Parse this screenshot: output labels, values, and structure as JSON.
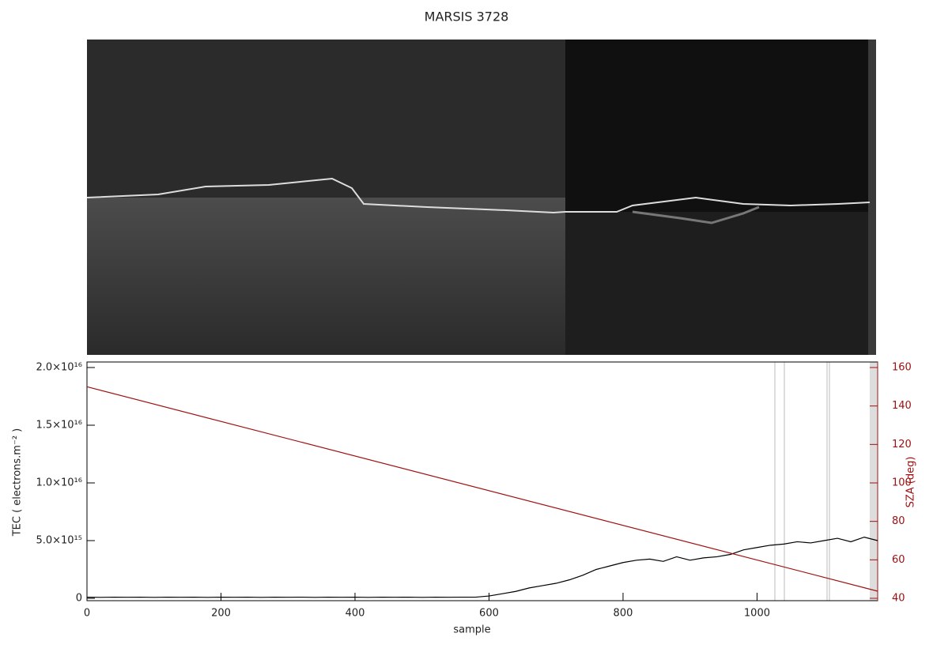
{
  "chart_data": {
    "type": "line",
    "title": "MARSIS 3728",
    "x_label": "sample",
    "y_label": "TEC ( electrons.m⁻² )",
    "y2_label": "SZA (deg)",
    "xlim": [
      0,
      1180
    ],
    "xticks": [
      0,
      200,
      400,
      600,
      800,
      1000
    ],
    "ylim": [
      0,
      2e+16
    ],
    "yticks": [
      {
        "value": 0,
        "label": "0"
      },
      {
        "value": 5000000000000000.0,
        "label": "5.0×10¹⁵"
      },
      {
        "value": 1e+16,
        "label": "1.0×10¹⁶"
      },
      {
        "value": 1.5e+16,
        "label": "1.5×10¹⁶"
      },
      {
        "value": 2e+16,
        "label": "2.0×10¹⁶"
      }
    ],
    "y2lim": [
      40,
      160
    ],
    "y2ticks": [
      40,
      60,
      80,
      100,
      120,
      140,
      160
    ],
    "x": [
      0,
      20,
      40,
      60,
      80,
      100,
      120,
      140,
      160,
      180,
      200,
      220,
      240,
      260,
      280,
      300,
      320,
      340,
      360,
      380,
      400,
      420,
      440,
      460,
      480,
      500,
      520,
      540,
      560,
      580,
      600,
      620,
      640,
      660,
      680,
      700,
      720,
      740,
      760,
      780,
      800,
      820,
      840,
      860,
      880,
      900,
      920,
      940,
      960,
      980,
      1000,
      1020,
      1040,
      1060,
      1080,
      1100,
      1120,
      1140,
      1160,
      1180
    ],
    "series": [
      {
        "name": "TEC",
        "color": "#000000",
        "values": [
          100000000000000.0,
          80000000000000.0,
          100000000000000.0,
          90000000000000.0,
          100000000000000.0,
          80000000000000.0,
          100000000000000.0,
          90000000000000.0,
          100000000000000.0,
          80000000000000.0,
          100000000000000.0,
          90000000000000.0,
          100000000000000.0,
          80000000000000.0,
          100000000000000.0,
          90000000000000.0,
          100000000000000.0,
          80000000000000.0,
          100000000000000.0,
          90000000000000.0,
          100000000000000.0,
          80000000000000.0,
          100000000000000.0,
          90000000000000.0,
          100000000000000.0,
          80000000000000.0,
          100000000000000.0,
          90000000000000.0,
          100000000000000.0,
          100000000000000.0,
          200000000000000.0,
          400000000000000.0,
          600000000000000.0,
          900000000000000.0,
          1100000000000000.0,
          1300000000000000.0,
          1600000000000000.0,
          2000000000000000.0,
          2500000000000000.0,
          2800000000000000.0,
          3100000000000000.0,
          3300000000000000.0,
          3400000000000000.0,
          3200000000000000.0,
          3600000000000000.0,
          3300000000000000.0,
          3500000000000000.0,
          3600000000000000.0,
          3800000000000000.0,
          4200000000000000.0,
          4400000000000000.0,
          4600000000000000.0,
          4700000000000000.0,
          4900000000000000.0,
          4800000000000000.0,
          5000000000000000.0,
          5200000000000000.0,
          4900000000000000.0,
          5300000000000000.0,
          5000000000000000.0
        ]
      },
      {
        "name": "SZA",
        "color": "#a01010",
        "axis": "y2",
        "x": [
          0,
          1180
        ],
        "values": [
          150,
          43.7
        ]
      }
    ]
  }
}
